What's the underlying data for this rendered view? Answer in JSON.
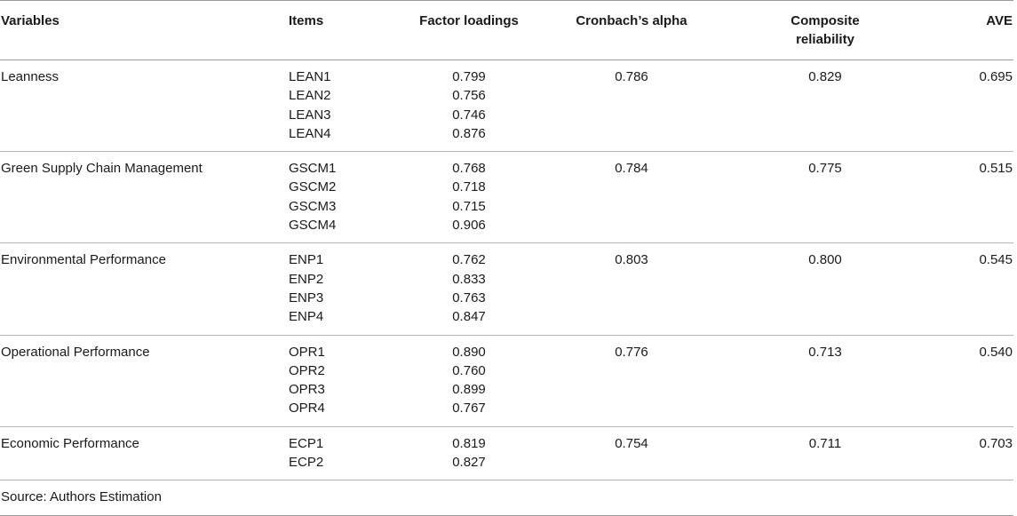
{
  "headers": {
    "variables": "Variables",
    "items": "Items",
    "factor_loadings": "Factor loadings",
    "cronbach": "Cronbach’s alpha",
    "composite_line1": "Composite",
    "composite_line2": "reliability",
    "ave": "AVE"
  },
  "rows": [
    {
      "variable": "Leanness",
      "items": [
        "LEAN1",
        "LEAN2",
        "LEAN3",
        "LEAN4"
      ],
      "loadings": [
        "0.799",
        "0.756",
        "0.746",
        "0.876"
      ],
      "cronbach": "0.786",
      "composite": "0.829",
      "ave": "0.695"
    },
    {
      "variable": "Green Supply Chain Management",
      "items": [
        "GSCM1",
        "GSCM2",
        "GSCM3",
        "GSCM4"
      ],
      "loadings": [
        "0.768",
        "0.718",
        "0.715",
        "0.906"
      ],
      "cronbach": "0.784",
      "composite": "0.775",
      "ave": "0.515"
    },
    {
      "variable": "Environmental Performance",
      "items": [
        "ENP1",
        "ENP2",
        "ENP3",
        "ENP4"
      ],
      "loadings": [
        "0.762",
        "0.833",
        "0.763",
        "0.847"
      ],
      "cronbach": "0.803",
      "composite": "0.800",
      "ave": "0.545"
    },
    {
      "variable": "Operational Performance",
      "items": [
        "OPR1",
        "OPR2",
        "OPR3",
        "OPR4"
      ],
      "loadings": [
        "0.890",
        "0.760",
        "0.899",
        "0.767"
      ],
      "cronbach": "0.776",
      "composite": "0.713",
      "ave": "0.540"
    },
    {
      "variable": "Economic Performance",
      "items": [
        "ECP1",
        "ECP2"
      ],
      "loadings": [
        "0.819",
        "0.827"
      ],
      "cronbach": "0.754",
      "composite": "0.711",
      "ave": "0.703"
    }
  ],
  "source_note": "Source: Authors Estimation"
}
